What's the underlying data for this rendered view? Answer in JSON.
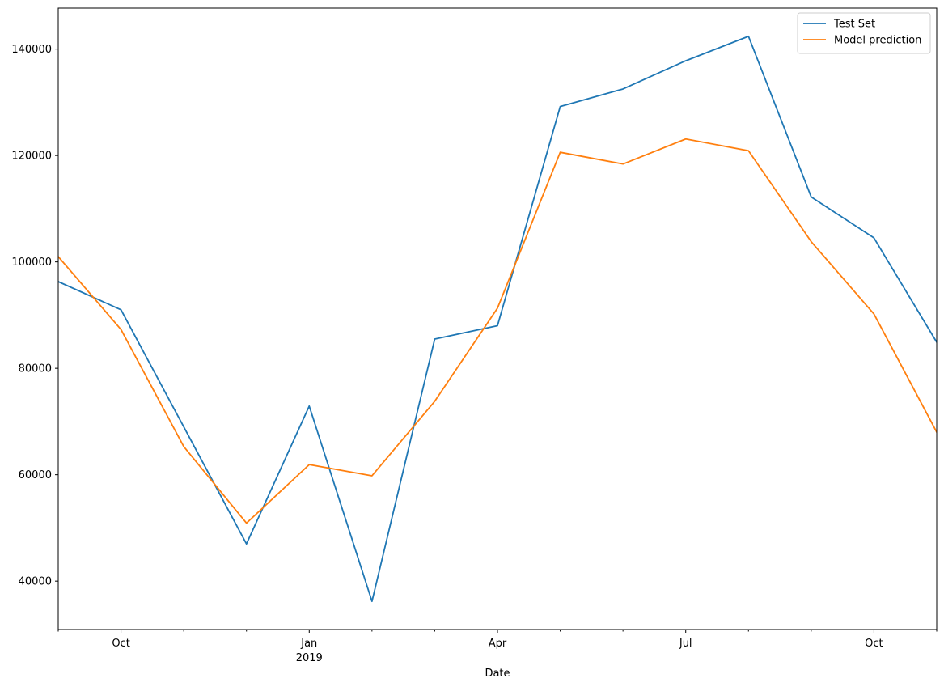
{
  "chart_data": {
    "type": "line",
    "title": "",
    "xlabel": "Date",
    "ylabel": "",
    "x": [
      "2018-09",
      "2018-10",
      "2018-11",
      "2018-12",
      "2019-01",
      "2019-02",
      "2019-03",
      "2019-04",
      "2019-05",
      "2019-06",
      "2019-07",
      "2019-08",
      "2019-09",
      "2019-10",
      "2019-11"
    ],
    "series": [
      {
        "name": "Test Set",
        "color": "#1f77b4",
        "values": [
          96300,
          91000,
          69000,
          47000,
          72900,
          36200,
          85500,
          88000,
          129200,
          132500,
          137800,
          142400,
          112200,
          104500,
          84900
        ]
      },
      {
        "name": "Model prediction",
        "color": "#ff7f0e",
        "values": [
          101000,
          87300,
          65300,
          50900,
          61900,
          59800,
          73800,
          91300,
          120600,
          118400,
          123100,
          120900,
          103800,
          90200,
          68000
        ]
      }
    ],
    "xlim": [
      "2018-09",
      "2019-11"
    ],
    "ylim": [
      30900,
      147700
    ],
    "yticks": [
      40000,
      60000,
      80000,
      100000,
      120000,
      140000
    ],
    "xticks": [
      {
        "month": "2018-10",
        "label": "Oct",
        "sublabel": ""
      },
      {
        "month": "2019-01",
        "label": "Jan",
        "sublabel": "2019"
      },
      {
        "month": "2019-04",
        "label": "Apr",
        "sublabel": ""
      },
      {
        "month": "2019-07",
        "label": "Jul",
        "sublabel": ""
      },
      {
        "month": "2019-10",
        "label": "Oct",
        "sublabel": ""
      }
    ],
    "grid": false,
    "legend": "top-right"
  }
}
